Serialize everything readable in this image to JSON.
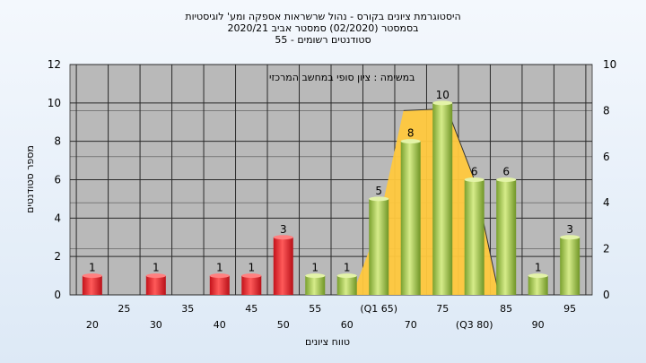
{
  "title_lines": [
    "היסטוגרמת ציונים בקורס - נהול שרשראות אספקה ומע' לוגיסטיות",
    "בסמסטר  (02/2020)  סמסטר אביב 2020/21",
    "סטודנטים רשומים - 55"
  ],
  "chart_data": {
    "type": "bar",
    "title": "היסטוגרמת ציונים בקורס - נהול שרשראות אספקה ומע' לוגיסטיות",
    "subtitle_lines": [
      "בסמסטר  (02/2020)  סמסטר אביב 2020/21",
      "סטודנטים רשומים - 55"
    ],
    "annotation": "במשימה : ציון סופי במחשב המרכזי",
    "xlabel": "טווח ציונים",
    "ylabel": "מספר סטודנטים",
    "ylim": [
      0,
      12
    ],
    "y2lim": [
      0,
      10
    ],
    "yticks": [
      0,
      2,
      4,
      6,
      8,
      10,
      12
    ],
    "y2ticks": [
      0,
      2,
      4,
      6,
      8,
      10
    ],
    "grid": true,
    "categories": [
      "20",
      "25",
      "30",
      "35",
      "40",
      "45",
      "50",
      "55",
      "60",
      "(Q1 65)",
      "70",
      "75",
      "(Q3 80)",
      "85",
      "90",
      "95"
    ],
    "x_tick_labels_lower": [
      "20",
      "30",
      "40",
      "50",
      "60",
      "70",
      "(Q3 80)",
      "90"
    ],
    "x_tick_labels_upper": [
      "25",
      "35",
      "45",
      "55",
      "(Q1 65)",
      "75",
      "85",
      "95"
    ],
    "values": [
      1,
      0,
      1,
      0,
      1,
      1,
      3,
      1,
      1,
      5,
      8,
      10,
      6,
      6,
      1,
      3
    ],
    "data_labels": [
      "1",
      "",
      "1",
      "",
      "1",
      "1",
      "3",
      "1",
      "1",
      "5",
      "8",
      "10",
      "6",
      "6",
      "1",
      "3"
    ],
    "fail_threshold": 55,
    "colors": {
      "fail_bar": "#e8202a",
      "pass_bar": "#9dc34a",
      "distribution_fill": "#ffc83d",
      "distribution_line": "#333333",
      "plot_bg": "#b9b9b9",
      "grid": "#2a2a2a"
    }
  }
}
